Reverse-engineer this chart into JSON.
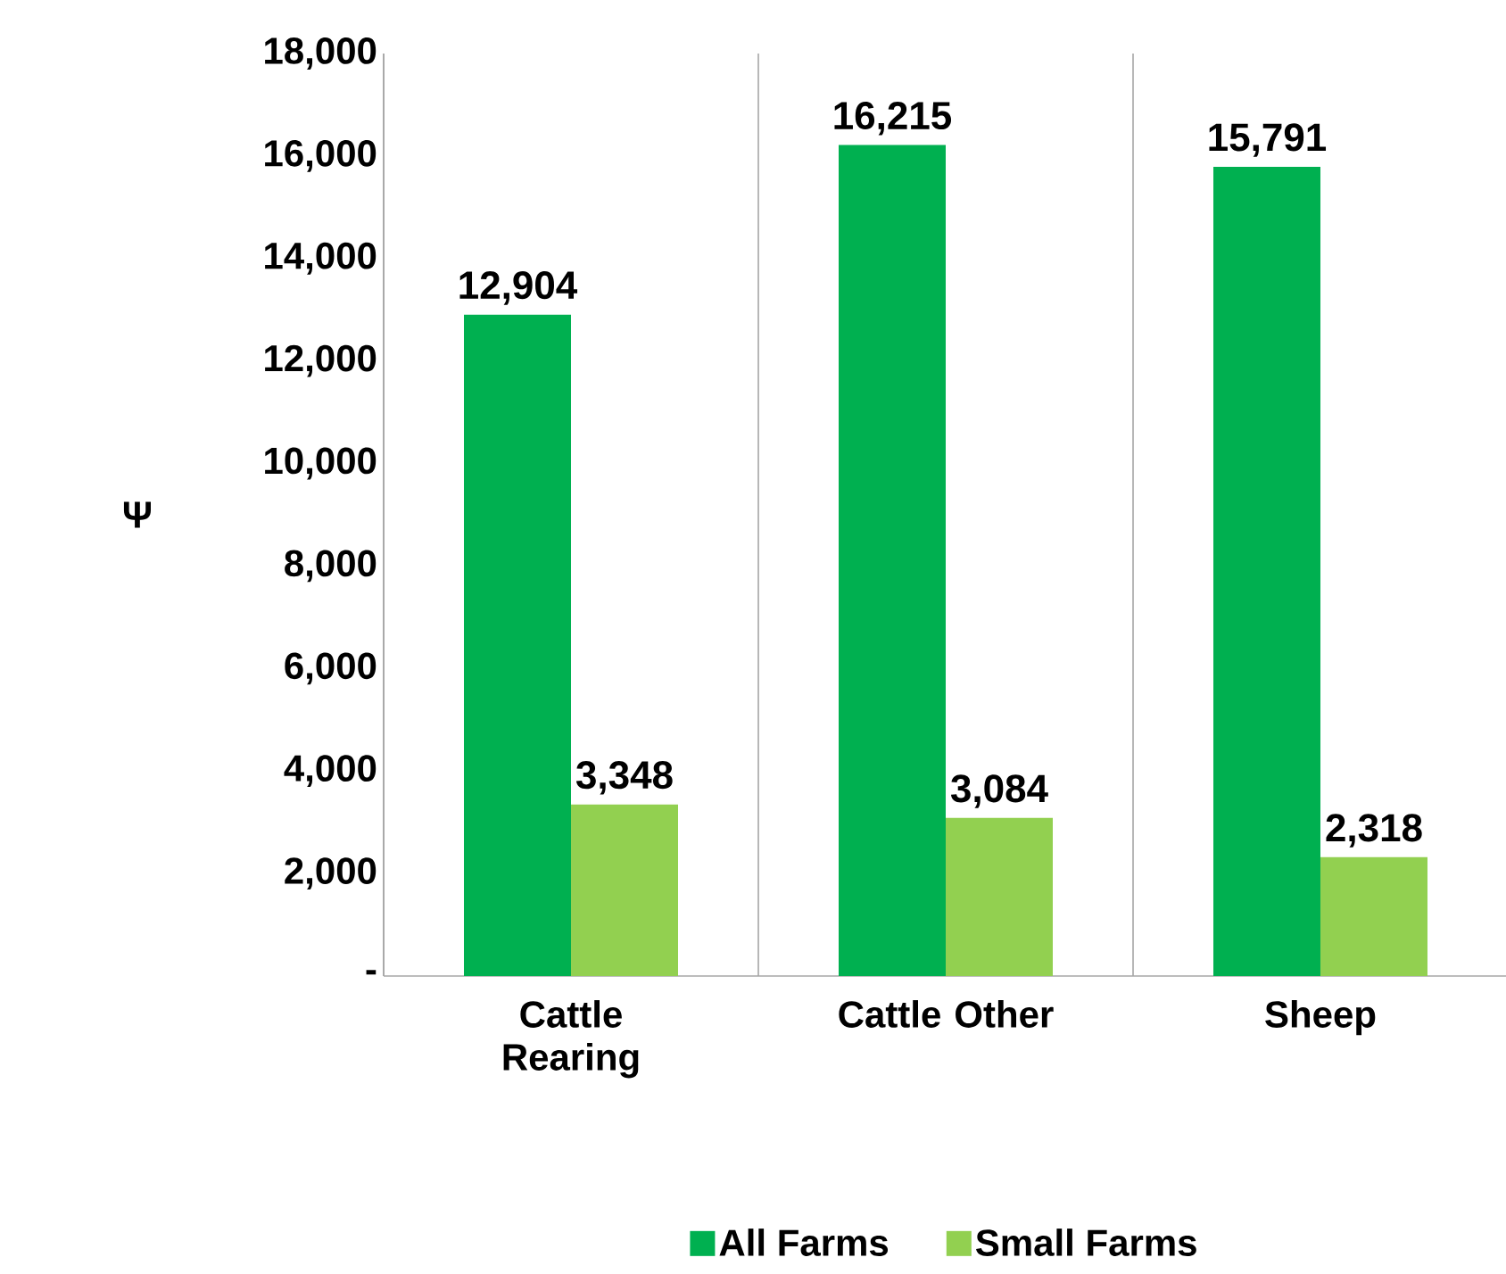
{
  "chart_data": {
    "type": "bar",
    "ylabel": "Ψ",
    "categories": [
      "Cattle Rearing",
      "Cattle Other",
      "Sheep"
    ],
    "series": [
      {
        "name": "All Farms",
        "color": "#00b050",
        "values": [
          12904,
          16215,
          15791
        ],
        "value_labels": [
          "12,904",
          "16,215",
          "15,791"
        ]
      },
      {
        "name": "Small Farms",
        "color": "#92d050",
        "values": [
          3348,
          3084,
          2318
        ],
        "value_labels": [
          "3,348",
          "3,084",
          "2,318"
        ]
      }
    ],
    "ylim": [
      0,
      18000
    ],
    "yticks": [
      {
        "value": 0,
        "label": "-"
      },
      {
        "value": 2000,
        "label": "2,000"
      },
      {
        "value": 4000,
        "label": "4,000"
      },
      {
        "value": 6000,
        "label": "6,000"
      },
      {
        "value": 8000,
        "label": "8,000"
      },
      {
        "value": 10000,
        "label": "10,000"
      },
      {
        "value": 12000,
        "label": "12,000"
      },
      {
        "value": 14000,
        "label": "14,000"
      },
      {
        "value": 16000,
        "label": "16,000"
      },
      {
        "value": 18000,
        "label": "18,000"
      }
    ],
    "grid": "x",
    "legend": "bottom"
  }
}
